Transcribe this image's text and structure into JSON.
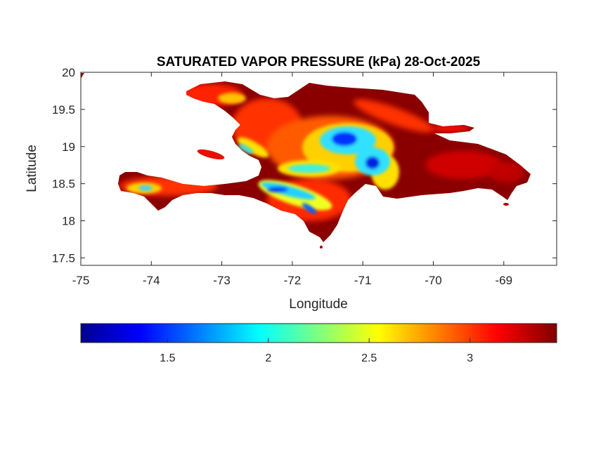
{
  "chart_data": {
    "type": "heatmap",
    "title": "SATURATED VAPOR PRESSURE (kPa) 28-Oct-2025",
    "xlabel": "Longitude",
    "ylabel": "Latitude",
    "xlim": [
      -75,
      -68.25
    ],
    "ylim": [
      17.4,
      20
    ],
    "xticks": [
      -75,
      -74,
      -73,
      -72,
      -71,
      -70,
      -69
    ],
    "yticks": [
      17.5,
      18,
      18.5,
      19,
      19.5,
      20
    ],
    "grid": false,
    "colormap": "jet",
    "colorbar": {
      "location": "bottom",
      "clim": [
        1.07,
        3.43
      ],
      "ticks": [
        1.5,
        2,
        2.5,
        3
      ]
    },
    "region": "Hispaniola",
    "value_range": [
      1.07,
      3.43
    ]
  }
}
